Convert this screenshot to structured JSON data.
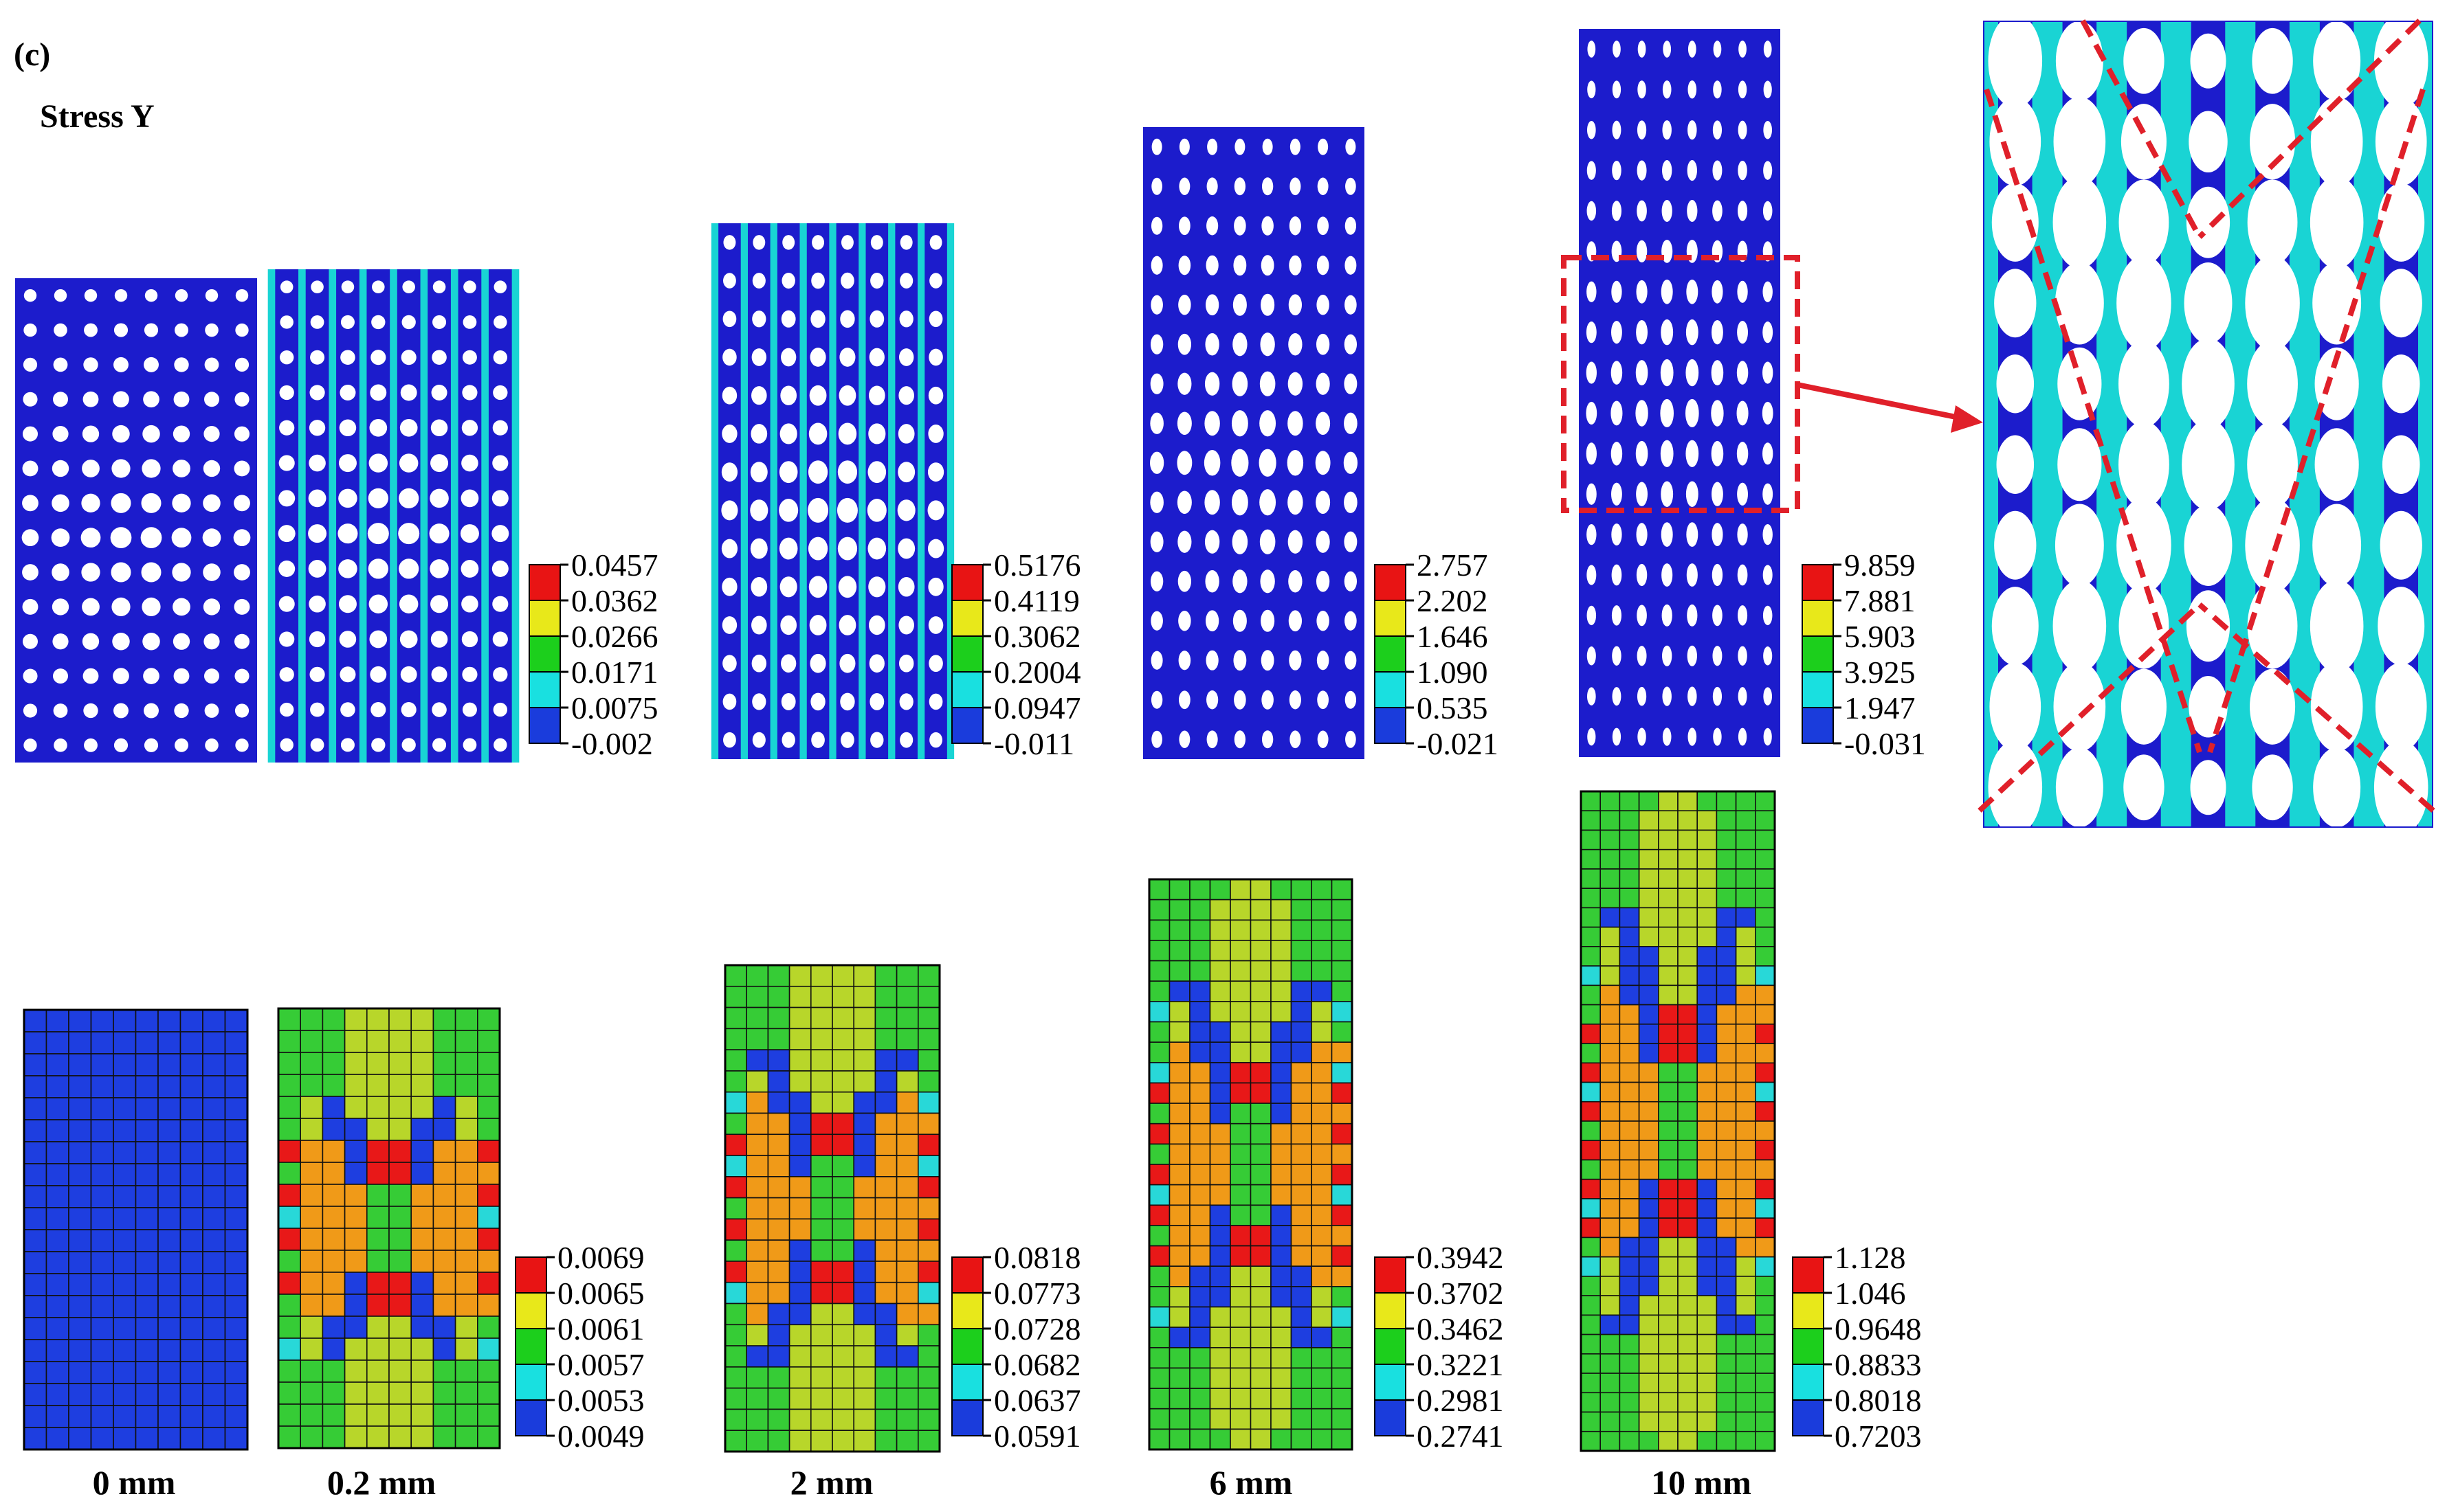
{
  "figure": {
    "panel_label": "(c)",
    "title": "Stress Y",
    "displacements": [
      "0 mm",
      "0.2 mm",
      "2 mm",
      "6 mm",
      "10 mm"
    ]
  },
  "colors": {
    "background_blue": "#1c1ccc",
    "hole": "#ffffff",
    "ligament_cyan": "#19d4d4",
    "legend": [
      "#e81414",
      "#e8e81a",
      "#1ccf1c",
      "#19e0e0",
      "#1a3cdc"
    ],
    "fe_colors": {
      "blue": "#1e3ee0",
      "cyan": "#28d8d8",
      "green": "#36cc36",
      "yellowgreen": "#b8d62a",
      "orange": "#f09a18",
      "red": "#e81818"
    },
    "highlight": "#e0202a"
  },
  "legends_top": [
    {
      "values": [
        "0.0457",
        "0.0362",
        "0.0266",
        "0.0171",
        "0.0075",
        "-0.002"
      ]
    },
    {
      "values": [
        "0.5176",
        "0.4119",
        "0.3062",
        "0.2004",
        "0.0947",
        "-0.011"
      ]
    },
    {
      "values": [
        "2.757",
        "2.202",
        "1.646",
        "1.090",
        "0.535",
        "-0.021"
      ]
    },
    {
      "values": [
        "9.859",
        "7.881",
        "5.903",
        "3.925",
        "1.947",
        "-0.031"
      ]
    }
  ],
  "legends_bottom": [
    {
      "values": [
        "0.0069",
        "0.0065",
        "0.0061",
        "0.0057",
        "0.0053",
        "0.0049"
      ]
    },
    {
      "values": [
        "0.0818",
        "0.0773",
        "0.0728",
        "0.0682",
        "0.0637",
        "0.0591"
      ]
    },
    {
      "values": [
        "0.3942",
        "0.3702",
        "0.3462",
        "0.3221",
        "0.2981",
        "0.2741"
      ]
    },
    {
      "values": [
        "1.128",
        "1.046",
        "0.9648",
        "0.8833",
        "0.8018",
        "0.7203"
      ]
    }
  ]
}
